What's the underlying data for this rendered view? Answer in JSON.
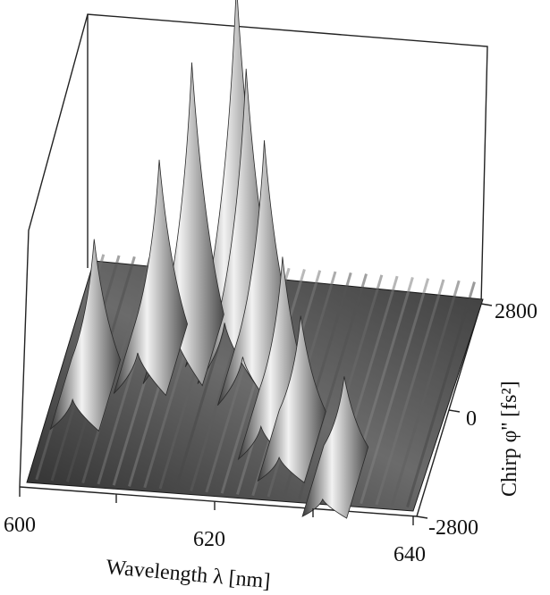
{
  "chart_data": {
    "type": "surface",
    "title": "",
    "xlabel": "Wavelength  λ [nm]",
    "ylabel": "Chirp φ'' [fs²]",
    "zlabel": "",
    "x_ticks": [
      "600",
      "620",
      "640"
    ],
    "y_ticks": [
      "-2800",
      "0",
      "2800"
    ],
    "xlim": [
      600,
      640
    ],
    "ylim": [
      -2800,
      2800
    ],
    "colormap": "grayscale",
    "background": "#ffffff",
    "peaks": [
      {
        "wavelength_nm": 603.0,
        "chirp_fs2": 400,
        "relative_height": 0.38
      },
      {
        "wavelength_nm": 608.5,
        "chirp_fs2": 1400,
        "relative_height": 0.52
      },
      {
        "wavelength_nm": 611.5,
        "chirp_fs2": 1700,
        "relative_height": 0.8
      },
      {
        "wavelength_nm": 615.5,
        "chirp_fs2": 2200,
        "relative_height": 1.0
      },
      {
        "wavelength_nm": 617.0,
        "chirp_fs2": 1800,
        "relative_height": 0.78
      },
      {
        "wavelength_nm": 619.5,
        "chirp_fs2": 1300,
        "relative_height": 0.62
      },
      {
        "wavelength_nm": 623.0,
        "chirp_fs2": 0,
        "relative_height": 0.42
      },
      {
        "wavelength_nm": 625.5,
        "chirp_fs2": -500,
        "relative_height": 0.3
      },
      {
        "wavelength_nm": 631.0,
        "chirp_fs2": -1300,
        "relative_height": 0.22
      }
    ]
  }
}
